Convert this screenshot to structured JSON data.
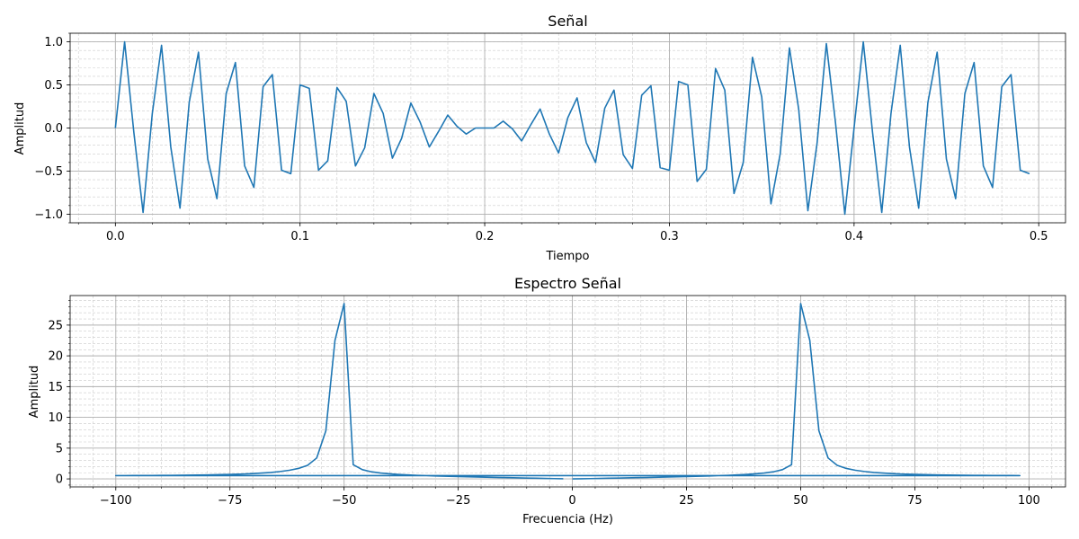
{
  "chart_data": [
    {
      "type": "line",
      "title": "Señal",
      "xlabel": "Tiempo",
      "ylabel": "Amplitud",
      "xlim": [
        -0.0245,
        0.5145
      ],
      "ylim": [
        -1.1,
        1.1
      ],
      "x_ticks": [
        0.0,
        0.1,
        0.2,
        0.3,
        0.4,
        0.5
      ],
      "x_tick_labels": [
        "0.0",
        "0.1",
        "0.2",
        "0.3",
        "0.4",
        "0.5"
      ],
      "y_ticks": [
        -1.0,
        -0.5,
        0.0,
        0.5,
        1.0
      ],
      "y_tick_labels": [
        "−1.0",
        "−0.5",
        "0.0",
        "0.5",
        "1.0"
      ],
      "grid": "major and minor",
      "color": "#1f77b4",
      "series": [
        {
          "x": [
            0.0,
            0.005,
            0.01,
            0.015,
            0.02,
            0.025,
            0.03,
            0.035,
            0.04,
            0.045,
            0.05,
            0.055,
            0.06,
            0.065,
            0.07,
            0.075,
            0.08,
            0.085,
            0.09,
            0.095,
            0.1,
            0.105,
            0.11,
            0.115,
            0.12,
            0.125,
            0.13,
            0.135,
            0.14,
            0.145,
            0.15,
            0.155,
            0.16,
            0.165,
            0.17,
            0.175,
            0.18,
            0.185,
            0.19,
            0.195,
            0.2,
            0.205,
            0.21,
            0.215,
            0.22,
            0.225,
            0.23,
            0.235,
            0.24,
            0.245,
            0.25,
            0.255,
            0.26,
            0.265,
            0.27,
            0.275,
            0.28,
            0.285,
            0.29,
            0.295,
            0.3,
            0.305,
            0.31,
            0.315,
            0.32,
            0.325,
            0.33,
            0.335,
            0.34,
            0.345,
            0.35,
            0.355,
            0.36,
            0.365,
            0.37,
            0.375,
            0.38,
            0.385,
            0.39,
            0.395,
            0.4,
            0.405,
            0.41,
            0.415,
            0.42,
            0.425,
            0.43,
            0.435,
            0.44,
            0.445,
            0.45,
            0.455,
            0.46,
            0.465,
            0.47,
            0.475,
            0.48,
            0.485,
            0.49,
            0.495
          ],
          "values": [
            0.0,
            1.0,
            -0.05,
            -0.98,
            0.17,
            0.96,
            -0.22,
            -0.93,
            0.3,
            0.88,
            -0.36,
            -0.82,
            0.4,
            0.76,
            -0.44,
            -0.69,
            0.48,
            0.62,
            -0.49,
            -0.53,
            0.5,
            0.46,
            -0.49,
            -0.38,
            0.47,
            0.31,
            -0.44,
            -0.23,
            0.4,
            0.17,
            -0.35,
            -0.12,
            0.29,
            0.07,
            -0.22,
            -0.04,
            0.15,
            0.02,
            -0.07,
            0.0,
            0.0,
            0.0,
            0.08,
            -0.01,
            -0.15,
            0.04,
            0.22,
            -0.07,
            -0.29,
            0.12,
            0.35,
            -0.17,
            -0.4,
            0.23,
            0.44,
            -0.31,
            -0.47,
            0.38,
            0.49,
            -0.46,
            -0.49,
            0.54,
            0.5,
            -0.62,
            -0.48,
            0.69,
            0.44,
            -0.76,
            -0.4,
            0.82,
            0.36,
            -0.88,
            -0.3,
            0.93,
            0.22,
            -0.96,
            -0.17,
            0.98,
            0.05,
            -1.0,
            0.0,
            1.0,
            -0.05,
            -0.98,
            0.17,
            0.96,
            -0.22,
            -0.93,
            0.3,
            0.88,
            -0.36,
            -0.82,
            0.4,
            0.76,
            -0.44,
            -0.69,
            0.48,
            0.62,
            -0.49,
            -0.53
          ]
        }
      ]
    },
    {
      "type": "line",
      "title": "Espectro Señal",
      "xlabel": "Frecuencia (Hz)",
      "ylabel": "Amplitud",
      "xlim": [
        -110,
        108
      ],
      "ylim": [
        -1.3,
        29.8
      ],
      "x_ticks": [
        -100,
        -75,
        -50,
        -25,
        0,
        25,
        50,
        75,
        100
      ],
      "x_tick_labels": [
        "−100",
        "−75",
        "−50",
        "−25",
        "0",
        "25",
        "50",
        "75",
        "100"
      ],
      "y_ticks": [
        0,
        5,
        10,
        15,
        20,
        25
      ],
      "y_tick_labels": [
        "0",
        "5",
        "10",
        "15",
        "20",
        "25"
      ],
      "grid": "major and minor",
      "color": "#1f77b4",
      "series": [
        {
          "x": [
            0,
            2,
            4,
            6,
            8,
            10,
            12,
            14,
            16,
            18,
            20,
            22,
            24,
            26,
            28,
            30,
            32,
            34,
            36,
            38,
            40,
            42,
            44,
            46,
            48,
            50,
            52,
            54,
            56,
            58,
            60,
            62,
            64,
            66,
            68,
            70,
            72,
            74,
            76,
            78,
            80,
            82,
            84,
            86,
            88,
            90,
            92,
            94,
            96,
            98,
            -100,
            -98,
            -96,
            -94,
            -92,
            -90,
            -88,
            -86,
            -84,
            -82,
            -80,
            -78,
            -76,
            -74,
            -72,
            -70,
            -68,
            -66,
            -64,
            -62,
            -60,
            -58,
            -56,
            -54,
            -52,
            -50,
            -48,
            -46,
            -44,
            -42,
            -40,
            -38,
            -36,
            -34,
            -32,
            -30,
            -28,
            -26,
            -24,
            -22,
            -20,
            -18,
            -16,
            -14,
            -12,
            -10,
            -8,
            -6,
            -4,
            -2
          ],
          "values": [
            0.0,
            0.02,
            0.05,
            0.08,
            0.11,
            0.14,
            0.17,
            0.2,
            0.23,
            0.26,
            0.3,
            0.33,
            0.36,
            0.4,
            0.44,
            0.48,
            0.53,
            0.58,
            0.64,
            0.72,
            0.82,
            0.95,
            1.15,
            1.5,
            2.3,
            28.5,
            22.5,
            7.8,
            3.4,
            2.2,
            1.7,
            1.4,
            1.2,
            1.05,
            0.95,
            0.87,
            0.8,
            0.75,
            0.71,
            0.68,
            0.65,
            0.63,
            0.61,
            0.59,
            0.58,
            0.57,
            0.56,
            0.55,
            0.55,
            0.54,
            0.54,
            0.54,
            0.55,
            0.55,
            0.56,
            0.57,
            0.58,
            0.59,
            0.61,
            0.63,
            0.65,
            0.68,
            0.71,
            0.75,
            0.8,
            0.87,
            0.95,
            1.05,
            1.2,
            1.4,
            1.7,
            2.2,
            3.4,
            7.8,
            22.5,
            28.5,
            2.3,
            1.5,
            1.15,
            0.95,
            0.82,
            0.72,
            0.64,
            0.58,
            0.53,
            0.48,
            0.44,
            0.4,
            0.36,
            0.33,
            0.3,
            0.26,
            0.23,
            0.2,
            0.17,
            0.14,
            0.11,
            0.08,
            0.05,
            0.02
          ]
        }
      ]
    }
  ]
}
